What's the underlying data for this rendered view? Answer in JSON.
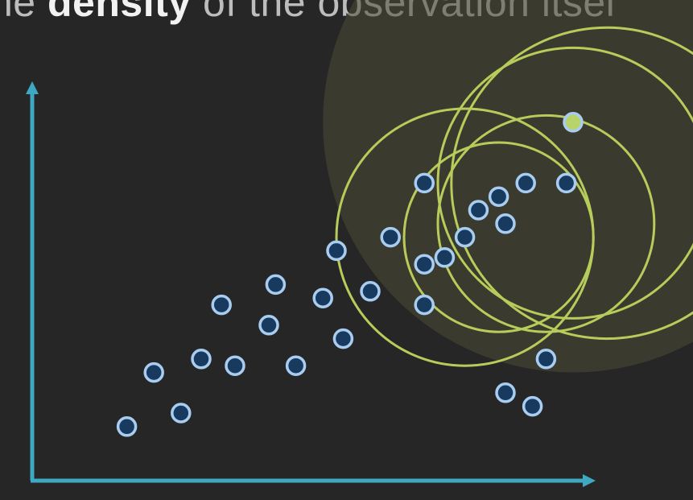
{
  "caption": {
    "before": "he ",
    "bold": "density",
    "after": " of the observation itsel"
  },
  "colors": {
    "background": "#262626",
    "axis": "#3fa9c4",
    "point_fill": "#173a5e",
    "point_stroke": "#a9cdf0",
    "neighborhood_circle": "#b7cc5a",
    "density_halo": "#4a4a34",
    "target_point": "#b7d36a"
  },
  "diagram": {
    "points": [
      {
        "x": 1.4,
        "y": 0.8
      },
      {
        "x": 1.8,
        "y": 1.6
      },
      {
        "x": 2.2,
        "y": 1.0
      },
      {
        "x": 2.5,
        "y": 1.8
      },
      {
        "x": 2.8,
        "y": 2.6
      },
      {
        "x": 3.0,
        "y": 1.7
      },
      {
        "x": 3.5,
        "y": 2.3
      },
      {
        "x": 3.9,
        "y": 1.7
      },
      {
        "x": 3.6,
        "y": 2.9
      },
      {
        "x": 4.3,
        "y": 2.7
      },
      {
        "x": 4.6,
        "y": 2.1
      },
      {
        "x": 4.5,
        "y": 3.4
      },
      {
        "x": 5.0,
        "y": 2.8
      },
      {
        "x": 5.3,
        "y": 3.6
      },
      {
        "x": 5.8,
        "y": 3.2
      },
      {
        "x": 5.8,
        "y": 2.6
      },
      {
        "x": 6.1,
        "y": 3.3
      },
      {
        "x": 5.8,
        "y": 4.4
      },
      {
        "x": 6.4,
        "y": 3.6
      },
      {
        "x": 6.6,
        "y": 4.0
      },
      {
        "x": 6.9,
        "y": 4.2
      },
      {
        "x": 7.3,
        "y": 4.4
      },
      {
        "x": 7.0,
        "y": 3.8
      },
      {
        "x": 7.9,
        "y": 4.4
      },
      {
        "x": 7.0,
        "y": 1.3
      },
      {
        "x": 7.4,
        "y": 1.1
      },
      {
        "x": 7.6,
        "y": 1.8
      }
    ],
    "target_point": {
      "x": 8.0,
      "y": 5.3
    },
    "neighborhood_circles": [
      {
        "x": 6.4,
        "y": 3.6,
        "r": 1.9
      },
      {
        "x": 6.9,
        "y": 3.6,
        "r": 1.4
      },
      {
        "x": 7.6,
        "y": 3.8,
        "r": 1.6
      },
      {
        "x": 8.0,
        "y": 4.4,
        "r": 2.0
      },
      {
        "x": 8.5,
        "y": 4.4,
        "r": 2.3
      }
    ],
    "density_halo": {
      "x": 8.0,
      "y": 5.3,
      "r": 3.7
    }
  }
}
